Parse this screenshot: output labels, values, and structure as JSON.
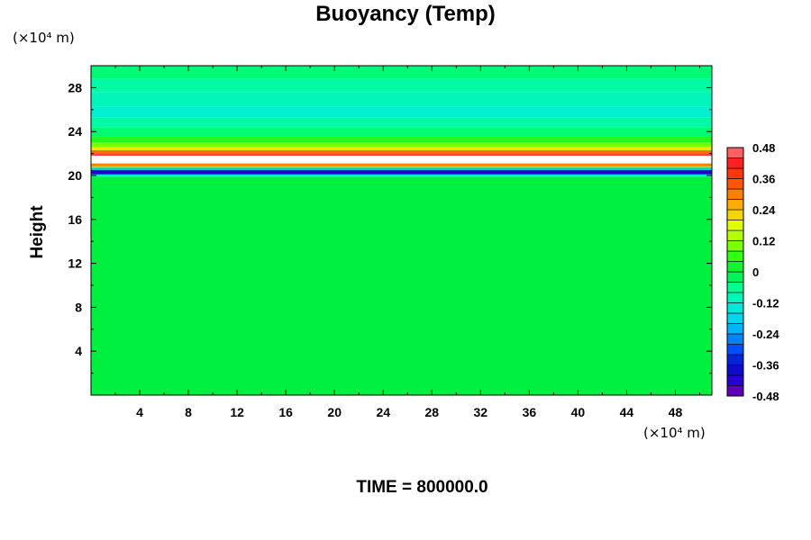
{
  "chart_data": {
    "type": "heatmap",
    "title": "Buoyancy (Temp)",
    "ylabel": "Height",
    "xlabel": "",
    "x_unit": "(×10⁴ m)",
    "y_unit": "(×10⁴ m)",
    "xlim": [
      0,
      51
    ],
    "ylim": [
      0,
      30
    ],
    "x_ticks": [
      4,
      8,
      12,
      16,
      20,
      24,
      28,
      32,
      36,
      40,
      44,
      48
    ],
    "y_ticks": [
      4,
      8,
      12,
      16,
      20,
      24,
      28
    ],
    "colorbar": {
      "range": [
        -0.48,
        0.48
      ],
      "step": 0.04,
      "labels": [
        "0.48",
        "0.36",
        "0.24",
        "0.12",
        "0",
        "-0.12",
        "-0.24",
        "-0.36",
        "-0.48"
      ]
    },
    "field_bands": [
      {
        "y_from": 0,
        "y_to": 19.9,
        "value": 0.0
      },
      {
        "y_from": 19.9,
        "y_to": 20.1,
        "value": -0.12
      },
      {
        "y_from": 20.1,
        "y_to": 20.5,
        "value": -0.4
      },
      {
        "y_from": 20.5,
        "y_to": 20.7,
        "value": -0.2
      },
      {
        "y_from": 20.7,
        "y_to": 20.85,
        "value": 0.1
      },
      {
        "y_from": 20.85,
        "y_to": 21.1,
        "value": 0.3
      },
      {
        "y_from": 21.1,
        "y_to": 21.8,
        "value": 0.6
      },
      {
        "y_from": 21.8,
        "y_to": 22.0,
        "value": 0.44
      },
      {
        "y_from": 22.0,
        "y_to": 22.3,
        "value": 0.32
      },
      {
        "y_from": 22.3,
        "y_to": 22.6,
        "value": 0.2
      },
      {
        "y_from": 22.6,
        "y_to": 23.0,
        "value": 0.1
      },
      {
        "y_from": 23.0,
        "y_to": 23.6,
        "value": 0.04
      },
      {
        "y_from": 23.6,
        "y_to": 24.4,
        "value": -0.04
      },
      {
        "y_from": 24.4,
        "y_to": 25.3,
        "value": -0.08
      },
      {
        "y_from": 25.3,
        "y_to": 26.3,
        "value": -0.12
      },
      {
        "y_from": 26.3,
        "y_to": 27.6,
        "value": -0.1
      },
      {
        "y_from": 27.6,
        "y_to": 28.8,
        "value": -0.08
      },
      {
        "y_from": 28.8,
        "y_to": 30,
        "value": -0.04
      }
    ],
    "time_label": "TIME = 800000.0"
  }
}
